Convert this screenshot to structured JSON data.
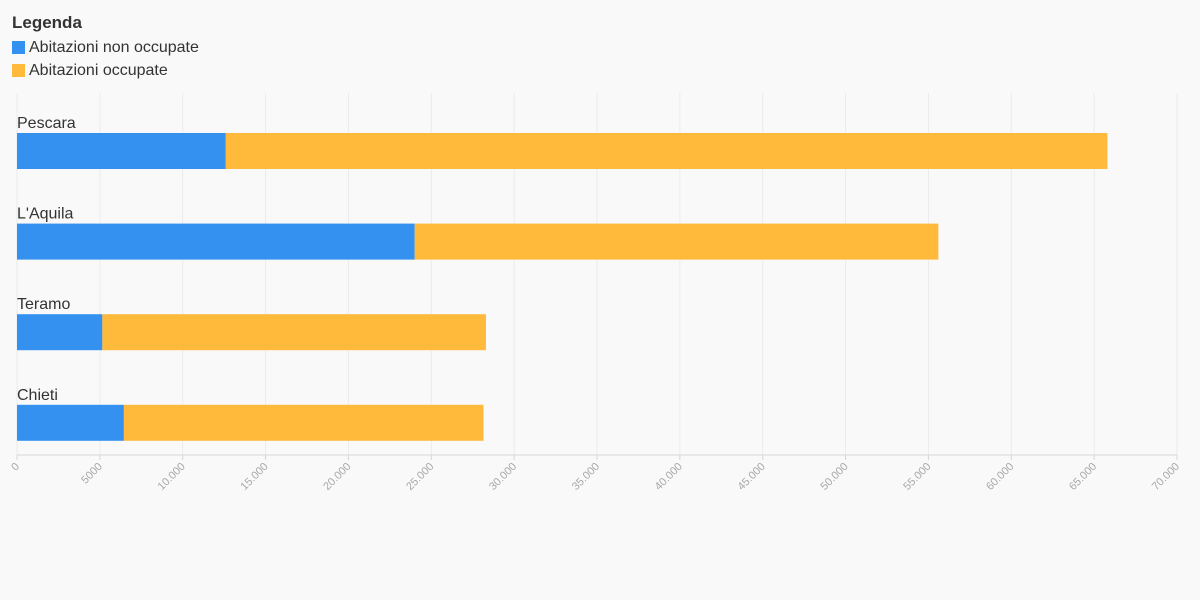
{
  "legend": {
    "title": "Legenda"
  },
  "chart_data": {
    "type": "bar",
    "orientation": "horizontal",
    "stacked": true,
    "categories": [
      "Pescara",
      "L'Aquila",
      "Teramo",
      "Chieti"
    ],
    "series": [
      {
        "name": "Abitazioni non occupate",
        "color": "#3491f0",
        "values": [
          12600,
          24000,
          5150,
          6450
        ]
      },
      {
        "name": "Abitazioni occupate",
        "color": "#ffba3b",
        "values": [
          53200,
          31600,
          23150,
          21700
        ]
      }
    ],
    "xlim": [
      0,
      70000
    ],
    "x_ticks": [
      0,
      5000,
      10000,
      15000,
      20000,
      25000,
      30000,
      35000,
      40000,
      45000,
      50000,
      55000,
      60000,
      65000,
      70000
    ],
    "x_tick_labels": [
      "0",
      "5000",
      "10.000",
      "15.000",
      "20.000",
      "25.000",
      "30.000",
      "35.000",
      "40.000",
      "45.000",
      "50.000",
      "55.000",
      "60.000",
      "65.000",
      "70.000"
    ],
    "grid": true,
    "legend_position": "top-left",
    "title": "",
    "xlabel": "",
    "ylabel": ""
  }
}
